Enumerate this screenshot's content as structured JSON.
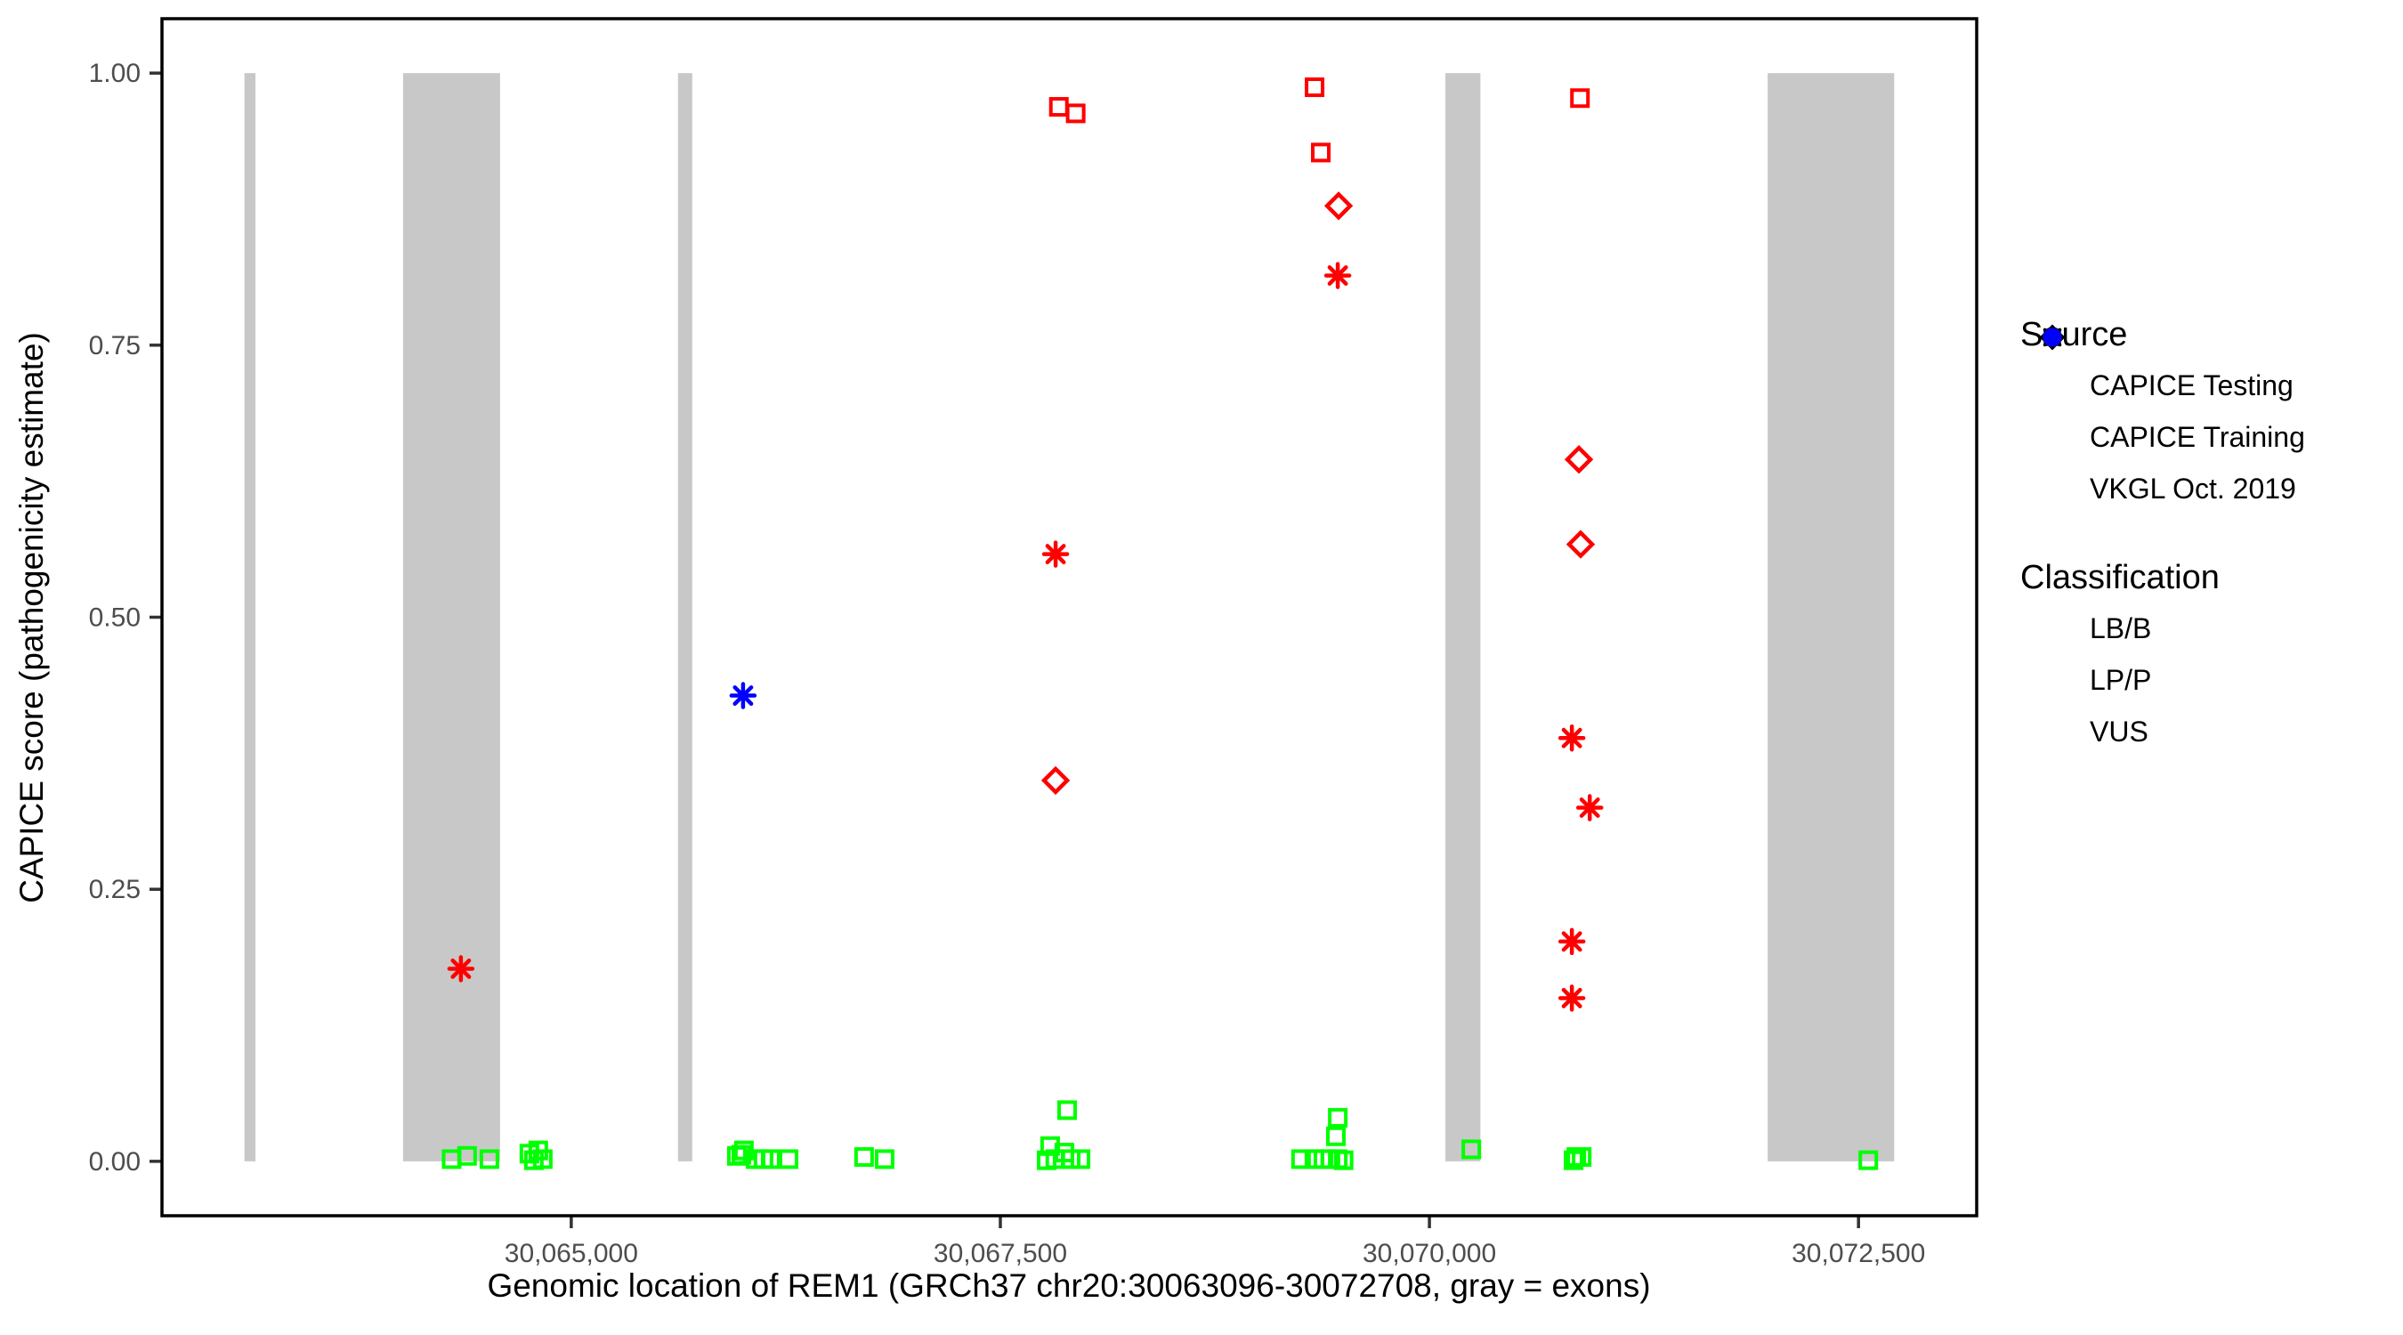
{
  "figure": {
    "x_axis_title": "Genomic location of REM1 (GRCh37 chr20:30063096-30072708, gray = exons)",
    "y_axis_title": "CAPICE score (pathogenicity estimate)"
  },
  "legend": {
    "source": {
      "title": "Source",
      "items": [
        {
          "label": "CAPICE Testing",
          "shape": "diamond"
        },
        {
          "label": "CAPICE Training",
          "shape": "square"
        },
        {
          "label": "VKGL Oct. 2019",
          "shape": "asterisk"
        }
      ]
    },
    "classification": {
      "title": "Classification",
      "items": [
        {
          "label": "LB/B",
          "color": "#00FF00"
        },
        {
          "label": "LP/P",
          "color": "#FF0000"
        },
        {
          "label": "VUS",
          "color": "#0000FF"
        }
      ]
    }
  },
  "chart_data": {
    "type": "scatter",
    "title": "",
    "xlabel": "Genomic location of REM1 (GRCh37 chr20:30063096-30072708, gray = exons)",
    "ylabel": "CAPICE score (pathogenicity estimate)",
    "x_ticks": [
      {
        "value": 30065000,
        "label": "30,065,000"
      },
      {
        "value": 30067500,
        "label": "30,067,500"
      },
      {
        "value": 30070000,
        "label": "30,070,000"
      },
      {
        "value": 30072500,
        "label": "30,072,500"
      }
    ],
    "y_ticks": [
      {
        "value": 0.0,
        "label": "0.00"
      },
      {
        "value": 0.25,
        "label": "0.25"
      },
      {
        "value": 0.5,
        "label": "0.50"
      },
      {
        "value": 0.75,
        "label": "0.75"
      },
      {
        "value": 1.0,
        "label": "1.00"
      }
    ],
    "x_data_range_bp": [
      30063096,
      30072708
    ],
    "ylim": [
      0,
      1
    ],
    "grid": false,
    "legend_position": "right",
    "exon_color": "#C8C8C8",
    "exons_bp": [
      [
        30063096,
        30063160
      ],
      [
        30064020,
        30064585
      ],
      [
        30065622,
        30065705
      ],
      [
        30070093,
        30070297
      ],
      [
        30071971,
        30072708
      ]
    ],
    "shape_meaning": {
      "diamond": "CAPICE Testing",
      "square": "CAPICE Training",
      "asterisk": "VKGL Oct. 2019"
    },
    "color_meaning": {
      "LB/B": "#00FF00",
      "LP/P": "#FF0000",
      "VUS": "#0000FF"
    },
    "points_format": [
      "genomic_position_bp",
      "capice_score",
      "shape",
      "classification"
    ],
    "points": [
      [
        30064357,
        0.177,
        "asterisk",
        "LP/P"
      ],
      [
        30067841,
        0.969,
        "square",
        "LP/P"
      ],
      [
        30067939,
        0.963,
        "square",
        "LP/P"
      ],
      [
        30067822,
        0.558,
        "asterisk",
        "LP/P"
      ],
      [
        30067822,
        0.35,
        "diamond",
        "LP/P"
      ],
      [
        30069331,
        0.987,
        "square",
        "LP/P"
      ],
      [
        30069367,
        0.927,
        "square",
        "LP/P"
      ],
      [
        30069471,
        0.878,
        "diamond",
        "LP/P"
      ],
      [
        30069466,
        0.814,
        "asterisk",
        "LP/P"
      ],
      [
        30070877,
        0.977,
        "square",
        "LP/P"
      ],
      [
        30070871,
        0.645,
        "diamond",
        "LP/P"
      ],
      [
        30070881,
        0.567,
        "diamond",
        "LP/P"
      ],
      [
        30070830,
        0.389,
        "asterisk",
        "LP/P"
      ],
      [
        30070934,
        0.325,
        "asterisk",
        "LP/P"
      ],
      [
        30070830,
        0.202,
        "asterisk",
        "LP/P"
      ],
      [
        30070830,
        0.15,
        "asterisk",
        "LP/P"
      ],
      [
        30066001,
        0.428,
        "asterisk",
        "VUS"
      ],
      [
        30064303,
        0.002,
        "square",
        "LB/B"
      ],
      [
        30064393,
        0.005,
        "square",
        "LB/B"
      ],
      [
        30064523,
        0.002,
        "square",
        "LB/B"
      ],
      [
        30064756,
        0.007,
        "square",
        "LB/B"
      ],
      [
        30064808,
        0.01,
        "square",
        "LB/B"
      ],
      [
        30064782,
        0.001,
        "square",
        "LB/B"
      ],
      [
        30064834,
        0.002,
        "square",
        "LB/B"
      ],
      [
        30065965,
        0.005,
        "square",
        "LB/B"
      ],
      [
        30065991,
        0.006,
        "square",
        "LB/B"
      ],
      [
        30066006,
        0.01,
        "square",
        "LB/B"
      ],
      [
        30066074,
        0.002,
        "square",
        "LB/B"
      ],
      [
        30066120,
        0.002,
        "square",
        "LB/B"
      ],
      [
        30066162,
        0.002,
        "square",
        "LB/B"
      ],
      [
        30066266,
        0.002,
        "square",
        "LB/B"
      ],
      [
        30066706,
        0.004,
        "square",
        "LB/B"
      ],
      [
        30066826,
        0.002,
        "square",
        "LB/B"
      ],
      [
        30067889,
        0.047,
        "square",
        "LB/B"
      ],
      [
        30067790,
        0.014,
        "square",
        "LB/B"
      ],
      [
        30067873,
        0.008,
        "square",
        "LB/B"
      ],
      [
        30067820,
        0.002,
        "square",
        "LB/B"
      ],
      [
        30067910,
        0.002,
        "square",
        "LB/B"
      ],
      [
        30067967,
        0.002,
        "square",
        "LB/B"
      ],
      [
        30067770,
        0.001,
        "square",
        "LB/B"
      ],
      [
        30069466,
        0.04,
        "square",
        "LB/B"
      ],
      [
        30069455,
        0.023,
        "square",
        "LB/B"
      ],
      [
        30069252,
        0.002,
        "square",
        "LB/B"
      ],
      [
        30069330,
        0.002,
        "square",
        "LB/B"
      ],
      [
        30069382,
        0.002,
        "square",
        "LB/B"
      ],
      [
        30069423,
        0.002,
        "square",
        "LB/B"
      ],
      [
        30069466,
        0.002,
        "square",
        "LB/B"
      ],
      [
        30069500,
        0.001,
        "square",
        "LB/B"
      ],
      [
        30070244,
        0.011,
        "square",
        "LB/B"
      ],
      [
        30070856,
        0.004,
        "square",
        "LB/B"
      ],
      [
        30070887,
        0.004,
        "square",
        "LB/B"
      ],
      [
        30070840,
        0.001,
        "square",
        "LB/B"
      ],
      [
        30072557,
        0.001,
        "square",
        "LB/B"
      ]
    ]
  }
}
